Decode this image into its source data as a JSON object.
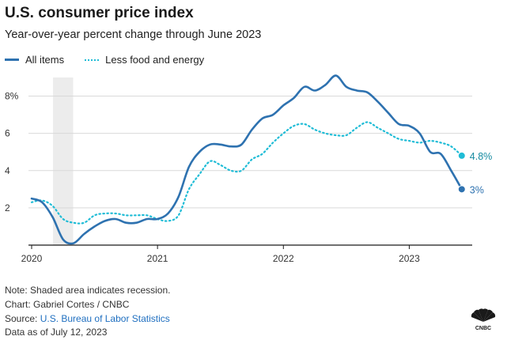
{
  "title": "U.S. consumer price index",
  "subtitle": "Year-over-year percent change through June 2023",
  "legend": [
    {
      "label": "All items",
      "color": "#2e72b0",
      "style": "solid"
    },
    {
      "label": "Less food and energy",
      "color": "#1fbcd6",
      "style": "dotted"
    }
  ],
  "footer": {
    "note": "Note: Shaded area indicates recession.",
    "credit": "Chart: Gabriel Cortes / CNBC",
    "source_prefix": "Source: ",
    "source_link": "U.S. Bureau of Labor Statistics",
    "as_of": "Data as of July 12, 2023"
  },
  "logo": {
    "text": "CNBC",
    "icon": "cnbc-peacock-icon"
  },
  "chart_data": {
    "type": "line",
    "title": "U.S. consumer price index",
    "subtitle": "Year-over-year percent change through June 2023",
    "x_unit": "year",
    "xlim": [
      2020.0,
      2023.5
    ],
    "ylim": [
      0,
      9
    ],
    "x_ticks": [
      2020,
      2021,
      2022,
      2023
    ],
    "x_tick_labels": [
      "2020",
      "2021",
      "2022",
      "2023"
    ],
    "y_ticks": [
      2,
      4,
      6,
      8
    ],
    "y_tick_labels": [
      "2",
      "4",
      "6",
      "8%"
    ],
    "grid": "horizontal",
    "legend_position": "top-left",
    "recession": {
      "start": 2020.17,
      "end": 2020.33
    },
    "series": [
      {
        "name": "All items",
        "color": "#2e72b0",
        "style": "solid",
        "end_label": "3%",
        "x": [
          2020.0,
          2020.083,
          2020.167,
          2020.25,
          2020.333,
          2020.417,
          2020.5,
          2020.583,
          2020.667,
          2020.75,
          2020.833,
          2020.917,
          2021.0,
          2021.083,
          2021.167,
          2021.25,
          2021.333,
          2021.417,
          2021.5,
          2021.583,
          2021.667,
          2021.75,
          2021.833,
          2021.917,
          2022.0,
          2022.083,
          2022.167,
          2022.25,
          2022.333,
          2022.417,
          2022.5,
          2022.583,
          2022.667,
          2022.75,
          2022.833,
          2022.917,
          2023.0,
          2023.083,
          2023.167,
          2023.25,
          2023.333,
          2023.417
        ],
        "values": [
          2.5,
          2.3,
          1.5,
          0.3,
          0.1,
          0.6,
          1.0,
          1.3,
          1.4,
          1.2,
          1.2,
          1.4,
          1.4,
          1.7,
          2.6,
          4.2,
          5.0,
          5.4,
          5.4,
          5.3,
          5.4,
          6.2,
          6.8,
          7.0,
          7.5,
          7.9,
          8.5,
          8.3,
          8.6,
          9.1,
          8.5,
          8.3,
          8.2,
          7.7,
          7.1,
          6.5,
          6.4,
          6.0,
          5.0,
          4.9,
          4.0,
          3.0
        ]
      },
      {
        "name": "Less food and energy",
        "color": "#1fbcd6",
        "style": "dotted",
        "end_label": "4.8%",
        "x": [
          2020.0,
          2020.083,
          2020.167,
          2020.25,
          2020.333,
          2020.417,
          2020.5,
          2020.583,
          2020.667,
          2020.75,
          2020.833,
          2020.917,
          2021.0,
          2021.083,
          2021.167,
          2021.25,
          2021.333,
          2021.417,
          2021.5,
          2021.583,
          2021.667,
          2021.75,
          2021.833,
          2021.917,
          2022.0,
          2022.083,
          2022.167,
          2022.25,
          2022.333,
          2022.417,
          2022.5,
          2022.583,
          2022.667,
          2022.75,
          2022.833,
          2022.917,
          2023.0,
          2023.083,
          2023.167,
          2023.25,
          2023.333,
          2023.417
        ],
        "values": [
          2.3,
          2.4,
          2.1,
          1.4,
          1.2,
          1.2,
          1.6,
          1.7,
          1.7,
          1.6,
          1.6,
          1.6,
          1.4,
          1.3,
          1.6,
          3.0,
          3.8,
          4.5,
          4.3,
          4.0,
          4.0,
          4.6,
          4.9,
          5.5,
          6.0,
          6.4,
          6.5,
          6.2,
          6.0,
          5.9,
          5.9,
          6.3,
          6.6,
          6.3,
          6.0,
          5.7,
          5.6,
          5.5,
          5.6,
          5.5,
          5.3,
          4.8
        ]
      }
    ]
  }
}
